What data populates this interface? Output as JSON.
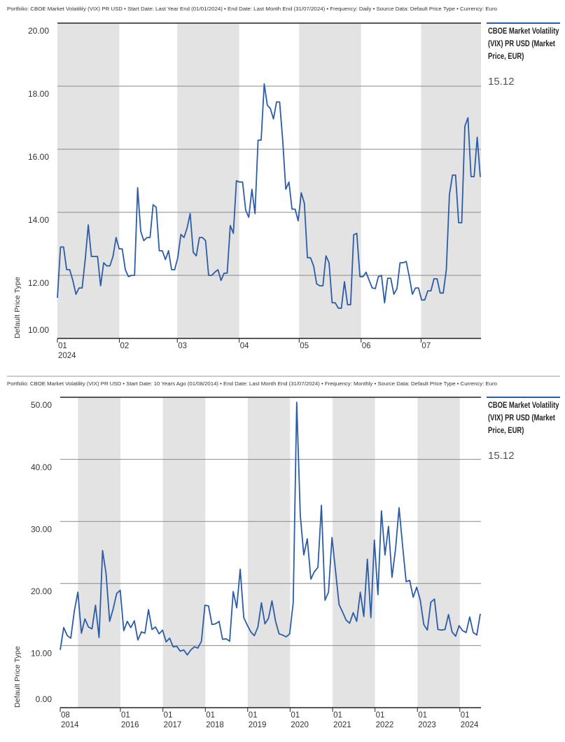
{
  "chart_data": [
    {
      "type": "line",
      "subtitle": "Portfolio: CBOE Market Volatility (VIX) PR USD • Start Date: Last Year End (01/01/2024) • End Date: Last Month End (31/07/2024) • Frequency: Daily • Source Data: Default Price Type • Currency: Euro",
      "y_label": "Default Price Type",
      "xlim": [
        "2024-01-01",
        "2024-07-31"
      ],
      "xticks": [
        {
          "value": "2024-01-01",
          "label": "01",
          "year": "2024"
        },
        {
          "value": "2024-02-01",
          "label": "02"
        },
        {
          "value": "2024-03-01",
          "label": "03"
        },
        {
          "value": "2024-04-01",
          "label": "04"
        },
        {
          "value": "2024-05-01",
          "label": "05"
        },
        {
          "value": "2024-06-01",
          "label": "06"
        },
        {
          "value": "2024-07-01",
          "label": "07"
        }
      ],
      "shading": "month",
      "ylim": [
        10,
        20
      ],
      "yticks": [
        {
          "value": 10,
          "label": "10.00"
        },
        {
          "value": 12,
          "label": "12.00"
        },
        {
          "value": 14,
          "label": "14.00"
        },
        {
          "value": 16,
          "label": "16.00"
        },
        {
          "value": 18,
          "label": "18.00"
        },
        {
          "value": 20,
          "label": "20.00"
        }
      ],
      "grid": true,
      "series": [
        {
          "name": "CBOE Market Volatility (VIX) PR USD (Market Price, EUR)",
          "color": "#2b5ca8",
          "last_value_label": "15.12",
          "values": [
            11.29,
            12.9,
            12.9,
            12.18,
            12.18,
            11.84,
            11.4,
            11.6,
            11.6,
            12.5,
            13.6,
            12.6,
            12.6,
            12.6,
            11.67,
            12.4,
            12.3,
            12.3,
            12.6,
            13.2,
            12.84,
            12.84,
            12.18,
            11.96,
            12.0,
            12.0,
            14.78,
            13.4,
            13.1,
            13.2,
            13.2,
            14.24,
            14.16,
            12.78,
            12.78,
            12.5,
            12.78,
            12.18,
            12.18,
            12.56,
            13.3,
            13.2,
            13.5,
            13.96,
            12.73,
            12.62,
            13.2,
            13.2,
            13.1,
            12.0,
            12.0,
            12.1,
            12.18,
            11.84,
            12.07,
            12.07,
            13.58,
            13.33,
            15.0,
            14.96,
            14.96,
            14.07,
            13.84,
            14.73,
            13.96,
            16.29,
            16.29,
            18.07,
            17.4,
            17.29,
            16.96,
            17.5,
            17.5,
            16.29,
            14.73,
            14.96,
            14.1,
            14.1,
            13.73,
            14.62,
            14.29,
            12.56,
            12.56,
            12.3,
            11.73,
            11.67,
            11.67,
            12.62,
            12.4,
            11.13,
            11.13,
            10.96,
            10.96,
            11.8,
            11.07,
            11.07,
            13.29,
            13.33,
            11.96,
            11.96,
            12.1,
            11.84,
            11.6,
            11.58,
            11.96,
            12.0,
            11.13,
            11.91,
            11.91,
            11.4,
            11.58,
            12.4,
            12.4,
            12.44,
            11.96,
            11.4,
            11.6,
            11.6,
            11.22,
            11.22,
            11.51,
            11.51,
            11.89,
            11.89,
            11.44,
            11.44,
            12.18,
            14.56,
            15.18,
            15.18,
            13.67,
            13.67,
            16.73,
            17.0,
            15.13,
            15.13,
            16.38,
            15.12
          ]
        }
      ]
    },
    {
      "type": "line",
      "subtitle": "Portfolio: CBOE Market Volatility (VIX) PR USD • Start Date: 10 Years Ago (01/08/2014) • End Date: Last Month End (31/07/2024) • Frequency: Monthly • Source Data: Default Price Type • Currency: Euro",
      "y_label": "Default Price Type",
      "xlim": [
        "2014-08",
        "2024-07"
      ],
      "xticks": [
        {
          "value": "2014-08",
          "label": "08",
          "year": "2014"
        },
        {
          "value": "2016-01",
          "label": "01",
          "year": "2016"
        },
        {
          "value": "2017-01",
          "label": "01",
          "year": "2017"
        },
        {
          "value": "2018-01",
          "label": "01",
          "year": "2018"
        },
        {
          "value": "2019-01",
          "label": "01",
          "year": "2019"
        },
        {
          "value": "2020-01",
          "label": "01",
          "year": "2020"
        },
        {
          "value": "2021-01",
          "label": "01",
          "year": "2021"
        },
        {
          "value": "2022-01",
          "label": "01",
          "year": "2022"
        },
        {
          "value": "2023-01",
          "label": "01",
          "year": "2023"
        },
        {
          "value": "2024-01",
          "label": "01",
          "year": "2024"
        }
      ],
      "shading": "year",
      "ylim": [
        0,
        50
      ],
      "yticks": [
        {
          "value": 0,
          "label": "0.00"
        },
        {
          "value": 10,
          "label": "10.00"
        },
        {
          "value": 20,
          "label": "20.00"
        },
        {
          "value": 30,
          "label": "30.00"
        },
        {
          "value": 40,
          "label": "40.00"
        },
        {
          "value": 50,
          "label": "50.00"
        }
      ],
      "grid": true,
      "series": [
        {
          "name": "CBOE Market Volatility (VIX) PR USD (Market Price, EUR)",
          "color": "#2b5ca8",
          "last_value_label": "15.12",
          "values": [
            9.3,
            12.9,
            11.6,
            11.2,
            15.6,
            18.6,
            12.0,
            14.3,
            13.0,
            12.7,
            16.5,
            11.3,
            25.3,
            21.6,
            13.9,
            15.9,
            18.4,
            18.9,
            12.4,
            13.9,
            12.9,
            14.0,
            10.9,
            12.2,
            12.0,
            15.8,
            12.6,
            13.0,
            11.9,
            12.5,
            10.6,
            11.2,
            9.8,
            9.9,
            9.1,
            9.3,
            8.5,
            9.3,
            9.8,
            9.6,
            10.7,
            16.5,
            16.4,
            13.4,
            13.5,
            13.9,
            11.0,
            11.1,
            10.7,
            18.7,
            16.1,
            22.3,
            14.5,
            13.3,
            12.2,
            11.6,
            13.0,
            16.9,
            13.5,
            14.4,
            17.2,
            13.9,
            11.9,
            11.7,
            11.4,
            11.9,
            16.9,
            49.2,
            31.0,
            24.6,
            27.2,
            20.7,
            21.9,
            22.6,
            32.6,
            17.3,
            18.6,
            27.4,
            22.0,
            16.6,
            15.4,
            14.1,
            13.6,
            15.3,
            13.9,
            18.6,
            14.7,
            23.9,
            14.5,
            27.0,
            18.2,
            31.7,
            24.6,
            29.2,
            21.0,
            25.6,
            32.2,
            26.0,
            20.3,
            20.5,
            17.8,
            19.4,
            17.3,
            13.4,
            12.5,
            17.0,
            17.5,
            12.6,
            12.5,
            12.6,
            15.0,
            12.2,
            11.5,
            13.2,
            12.4,
            12.1,
            14.6,
            12.1,
            11.7,
            15.12
          ]
        }
      ]
    }
  ]
}
